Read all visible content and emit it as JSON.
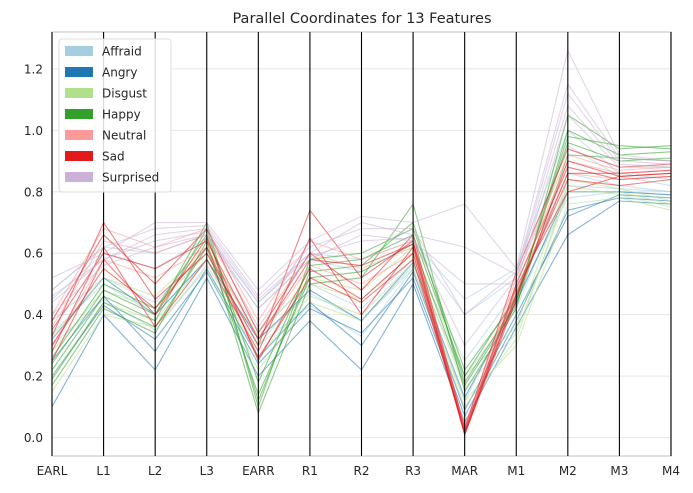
{
  "chart_data": {
    "type": "parallel_coordinates",
    "title": "Parallel Coordinates for 13 Features",
    "axes": [
      "EARL",
      "L1",
      "L2",
      "L3",
      "EARR",
      "R1",
      "R2",
      "R3",
      "MAR",
      "M1",
      "M2",
      "M3",
      "M4"
    ],
    "ylim": [
      -0.06,
      1.32
    ],
    "yticks": [
      0.0,
      0.2,
      0.4,
      0.6,
      0.8,
      1.0,
      1.2
    ],
    "ytick_labels": [
      "0.0",
      "0.2",
      "0.4",
      "0.6",
      "0.8",
      "1.0",
      "1.2"
    ],
    "legend_position": "top-left",
    "series": [
      {
        "name": "Affraid",
        "color": "#a6cee3",
        "lines": [
          [
            0.45,
            0.6,
            0.55,
            0.65,
            0.42,
            0.58,
            0.54,
            0.63,
            0.4,
            0.52,
            0.95,
            0.85,
            0.82
          ],
          [
            0.38,
            0.52,
            0.44,
            0.6,
            0.35,
            0.5,
            0.42,
            0.58,
            0.25,
            0.48,
            0.86,
            0.82,
            0.8
          ],
          [
            0.3,
            0.45,
            0.35,
            0.56,
            0.3,
            0.43,
            0.33,
            0.55,
            0.12,
            0.45,
            0.78,
            0.8,
            0.79
          ],
          [
            0.48,
            0.62,
            0.6,
            0.66,
            0.44,
            0.6,
            0.58,
            0.64,
            0.45,
            0.55,
            1.0,
            0.86,
            0.84
          ],
          [
            0.34,
            0.5,
            0.4,
            0.58,
            0.32,
            0.47,
            0.38,
            0.56,
            0.2,
            0.42,
            0.82,
            0.81,
            0.8
          ]
        ]
      },
      {
        "name": "Angry",
        "color": "#1f78b4",
        "lines": [
          [
            0.1,
            0.4,
            0.22,
            0.52,
            0.2,
            0.38,
            0.22,
            0.5,
            0.05,
            0.36,
            0.66,
            0.77,
            0.76
          ],
          [
            0.25,
            0.46,
            0.28,
            0.55,
            0.26,
            0.44,
            0.3,
            0.54,
            0.09,
            0.4,
            0.72,
            0.79,
            0.78
          ],
          [
            0.32,
            0.52,
            0.4,
            0.58,
            0.32,
            0.48,
            0.38,
            0.57,
            0.13,
            0.44,
            0.8,
            0.8,
            0.79
          ],
          [
            0.2,
            0.43,
            0.32,
            0.54,
            0.24,
            0.42,
            0.34,
            0.52,
            0.07,
            0.38,
            0.74,
            0.78,
            0.77
          ]
        ]
      },
      {
        "name": "Disgust",
        "color": "#b2df8a",
        "lines": [
          [
            0.2,
            0.44,
            0.38,
            0.58,
            0.26,
            0.46,
            0.4,
            0.57,
            0.12,
            0.3,
            0.76,
            0.78,
            0.74
          ],
          [
            0.28,
            0.48,
            0.42,
            0.6,
            0.3,
            0.5,
            0.45,
            0.6,
            0.16,
            0.34,
            0.8,
            0.8,
            0.76
          ],
          [
            0.15,
            0.4,
            0.36,
            0.55,
            0.22,
            0.44,
            0.38,
            0.55,
            0.1,
            0.32,
            0.82,
            0.79,
            0.75
          ],
          [
            0.33,
            0.52,
            0.46,
            0.62,
            0.33,
            0.52,
            0.48,
            0.62,
            0.2,
            0.36,
            0.84,
            0.81,
            0.77
          ]
        ]
      },
      {
        "name": "Happy",
        "color": "#33a02c",
        "lines": [
          [
            0.17,
            0.42,
            0.34,
            0.64,
            0.08,
            0.5,
            0.52,
            0.76,
            0.15,
            0.42,
            1.05,
            0.94,
            0.95
          ],
          [
            0.22,
            0.46,
            0.38,
            0.68,
            0.12,
            0.54,
            0.56,
            0.7,
            0.18,
            0.44,
            1.0,
            0.92,
            0.93
          ],
          [
            0.26,
            0.5,
            0.42,
            0.66,
            0.18,
            0.56,
            0.58,
            0.66,
            0.2,
            0.46,
            0.96,
            0.9,
            0.91
          ],
          [
            0.19,
            0.44,
            0.36,
            0.62,
            0.14,
            0.52,
            0.54,
            0.63,
            0.17,
            0.43,
            0.92,
            0.91,
            0.9
          ],
          [
            0.24,
            0.48,
            0.4,
            0.7,
            0.1,
            0.58,
            0.6,
            0.68,
            0.22,
            0.45,
            0.98,
            0.95,
            0.94
          ]
        ]
      },
      {
        "name": "Neutral",
        "color": "#fb9a99",
        "lines": [
          [
            0.36,
            0.64,
            0.6,
            0.66,
            0.36,
            0.6,
            0.55,
            0.62,
            0.02,
            0.5,
            0.9,
            0.86,
            0.87
          ],
          [
            0.3,
            0.58,
            0.52,
            0.62,
            0.32,
            0.56,
            0.5,
            0.6,
            0.04,
            0.48,
            0.86,
            0.84,
            0.85
          ],
          [
            0.4,
            0.68,
            0.62,
            0.68,
            0.38,
            0.64,
            0.58,
            0.64,
            0.03,
            0.52,
            0.92,
            0.87,
            0.88
          ]
        ]
      },
      {
        "name": "Sad",
        "color": "#e31a1c",
        "lines": [
          [
            0.25,
            0.58,
            0.4,
            0.65,
            0.25,
            0.55,
            0.45,
            0.6,
            0.01,
            0.45,
            0.9,
            0.85,
            0.86
          ],
          [
            0.33,
            0.7,
            0.45,
            0.6,
            0.3,
            0.74,
            0.52,
            0.64,
            0.02,
            0.5,
            0.88,
            0.84,
            0.85
          ],
          [
            0.28,
            0.62,
            0.36,
            0.58,
            0.28,
            0.65,
            0.4,
            0.62,
            0.01,
            0.47,
            0.84,
            0.82,
            0.84
          ],
          [
            0.38,
            0.66,
            0.5,
            0.68,
            0.34,
            0.6,
            0.48,
            0.66,
            0.03,
            0.54,
            0.94,
            0.88,
            0.89
          ],
          [
            0.3,
            0.55,
            0.42,
            0.62,
            0.26,
            0.52,
            0.44,
            0.58,
            0.02,
            0.46,
            0.86,
            0.86,
            0.87
          ],
          [
            0.35,
            0.6,
            0.55,
            0.64,
            0.32,
            0.58,
            0.56,
            0.63,
            0.01,
            0.49,
            0.8,
            0.85,
            0.86
          ]
        ]
      },
      {
        "name": "Surprised",
        "color": "#cab2d6",
        "lines": [
          [
            0.52,
            0.6,
            0.7,
            0.7,
            0.48,
            0.64,
            0.72,
            0.7,
            0.76,
            0.55,
            1.26,
            0.92,
            0.9
          ],
          [
            0.46,
            0.58,
            0.66,
            0.68,
            0.45,
            0.6,
            0.7,
            0.66,
            0.62,
            0.53,
            1.12,
            0.9,
            0.89
          ],
          [
            0.4,
            0.56,
            0.62,
            0.66,
            0.42,
            0.58,
            0.66,
            0.64,
            0.5,
            0.5,
            1.05,
            0.88,
            0.88
          ],
          [
            0.48,
            0.62,
            0.68,
            0.69,
            0.46,
            0.62,
            0.68,
            0.68,
            0.4,
            0.54,
            1.15,
            0.91,
            0.9
          ],
          [
            0.44,
            0.58,
            0.64,
            0.67,
            0.44,
            0.59,
            0.64,
            0.65,
            0.3,
            0.52,
            1.08,
            0.89,
            0.88
          ]
        ]
      }
    ]
  }
}
